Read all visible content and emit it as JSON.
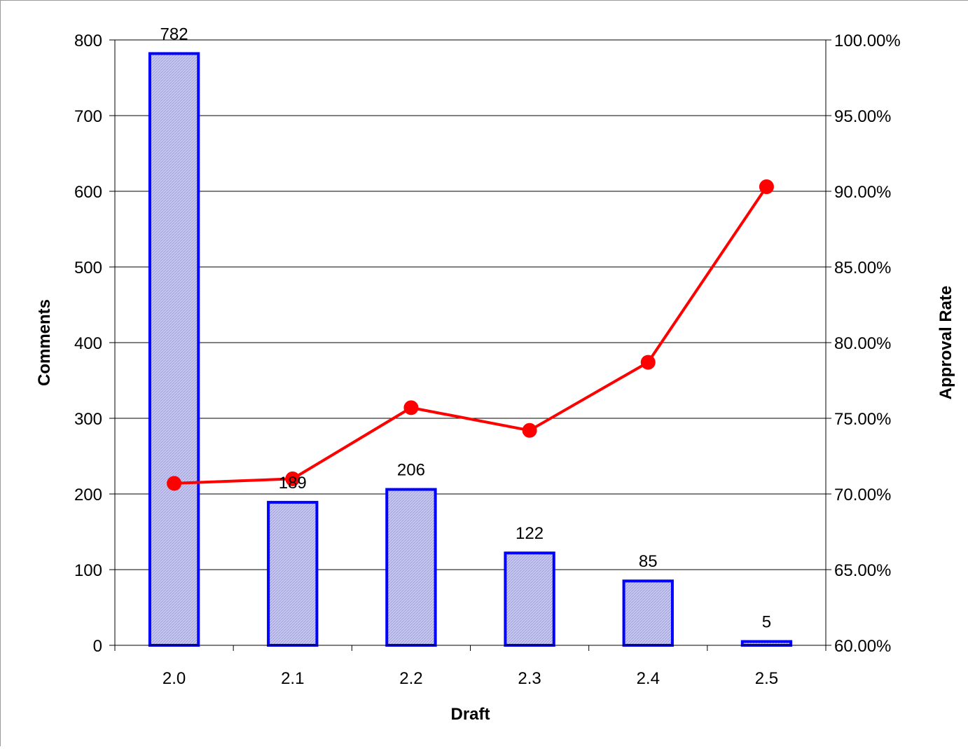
{
  "chart_data": {
    "type": "bar",
    "title": "",
    "xlabel": "Draft",
    "ylabel": "Comments",
    "y2label": "Approval Rate",
    "categories": [
      "2.0",
      "2.1",
      "2.2",
      "2.3",
      "2.4",
      "2.5"
    ],
    "series": [
      {
        "type": "bar",
        "axis": "left",
        "values": [
          782,
          189,
          206,
          122,
          85,
          5
        ],
        "data_labels": [
          "782",
          "189",
          "206",
          "122",
          "85",
          "5"
        ],
        "color": "#0000ff",
        "fill": "#c8c8f0"
      },
      {
        "type": "line",
        "axis": "right",
        "values": [
          70.7,
          71.0,
          75.7,
          74.2,
          78.7,
          90.3
        ],
        "color": "#ff0000"
      }
    ],
    "ylim": [
      0,
      800
    ],
    "yticks": [
      0,
      100,
      200,
      300,
      400,
      500,
      600,
      700,
      800
    ],
    "ytick_labels": [
      "0",
      "100",
      "200",
      "300",
      "400",
      "500",
      "600",
      "700",
      "800"
    ],
    "y2lim": [
      60,
      100
    ],
    "y2ticks": [
      60,
      65,
      70,
      75,
      80,
      85,
      90,
      95,
      100
    ],
    "y2tick_labels": [
      "60.00%",
      "65.00%",
      "70.00%",
      "75.00%",
      "80.00%",
      "85.00%",
      "90.00%",
      "95.00%",
      "100.00%"
    ],
    "grid": true,
    "legend": "none"
  }
}
